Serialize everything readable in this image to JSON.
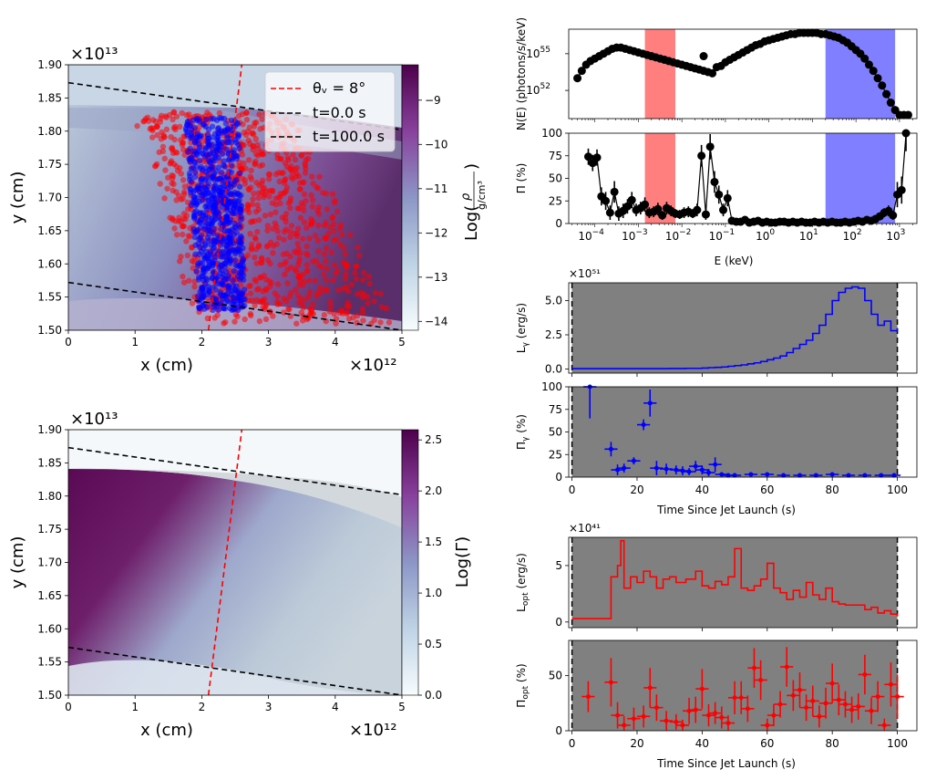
{
  "chart_data": [
    {
      "id": "density_map",
      "type": "heatmap",
      "xlabel": "x (cm)",
      "ylabel": "y (cm)",
      "xlim": [
        0,
        5
      ],
      "x_exponent": "×10¹²",
      "ylim": [
        1.5,
        1.9
      ],
      "y_exponent": "×10¹³",
      "xticks": [
        "0",
        "1",
        "2",
        "3",
        "4",
        "5"
      ],
      "yticks": [
        "1.50",
        "1.55",
        "1.60",
        "1.65",
        "1.70",
        "1.75",
        "1.80",
        "1.85",
        "1.90"
      ],
      "colorbar": {
        "label_prefix": "Log(",
        "frac_num": "ρ",
        "frac_den": "g/cm³",
        "label_suffix": ")",
        "range": [
          -14.2,
          -8.2
        ],
        "ticks": [
          "−14",
          "−13",
          "−12",
          "−11",
          "−10",
          "−9"
        ],
        "colors": [
          "#f7fcfd",
          "#bfd3e6",
          "#8c96c6",
          "#88419d",
          "#4d004b"
        ]
      },
      "legend": {
        "position": "top-right",
        "entries": [
          {
            "label": "θᵥ = 8°",
            "style": "dashed",
            "color": "#ff0000"
          },
          {
            "label": "t=0.0 s",
            "style": "dashed",
            "color": "#000000"
          },
          {
            "label": "t=100.0 s",
            "style": "dashed",
            "color": "#000000"
          }
        ]
      },
      "lines": [
        {
          "name": "line-of-sight",
          "color": "#ff0000",
          "x": [
            2.1,
            2.6
          ],
          "y": [
            1.5,
            1.9
          ]
        },
        {
          "name": "t0",
          "color": "#000000",
          "x": [
            0,
            5
          ],
          "y": [
            1.572,
            1.5
          ]
        },
        {
          "name": "t100",
          "color": "#000000",
          "x": [
            0,
            5
          ],
          "y": [
            1.873,
            1.802
          ]
        }
      ],
      "photon_clouds": [
        {
          "name": "optical",
          "color": "#ff0000",
          "x_range": [
            1.0,
            4.9
          ],
          "y_range": [
            1.51,
            1.83
          ]
        },
        {
          "name": "gamma",
          "color": "#0000ff",
          "x_range": [
            1.9,
            2.6
          ],
          "y_range": [
            1.53,
            1.82
          ]
        }
      ]
    },
    {
      "id": "lorentz_map",
      "type": "heatmap",
      "xlabel": "x (cm)",
      "ylabel": "y (cm)",
      "xlim": [
        0,
        5
      ],
      "x_exponent": "×10¹²",
      "ylim": [
        1.5,
        1.9
      ],
      "y_exponent": "×10¹³",
      "xticks": [
        "0",
        "1",
        "2",
        "3",
        "4",
        "5"
      ],
      "yticks": [
        "1.50",
        "1.55",
        "1.60",
        "1.65",
        "1.70",
        "1.75",
        "1.80",
        "1.85",
        "1.90"
      ],
      "colorbar": {
        "label": "Log(Γ)",
        "range": [
          0,
          2.6
        ],
        "ticks": [
          "0.0",
          "0.5",
          "1.0",
          "1.5",
          "2.0",
          "2.5"
        ],
        "colors": [
          "#f7fcfd",
          "#bfd3e6",
          "#8c96c6",
          "#88419d",
          "#4d004b"
        ]
      },
      "lines": [
        {
          "name": "line-of-sight",
          "color": "#ff0000",
          "x": [
            2.1,
            2.6
          ],
          "y": [
            1.5,
            1.9
          ]
        },
        {
          "name": "t0",
          "color": "#000000",
          "x": [
            0,
            5
          ],
          "y": [
            1.572,
            1.5
          ]
        },
        {
          "name": "t100",
          "color": "#000000",
          "x": [
            0,
            5
          ],
          "y": [
            1.873,
            1.802
          ]
        }
      ]
    },
    {
      "id": "spectrum",
      "type": "scatter",
      "xscale": "log",
      "yscale": "log",
      "ylabel": "N(E) (photons/s/keV)",
      "xlim_log10": [
        -4.6,
        3.4
      ],
      "ylim_log10": [
        49.7,
        57.0
      ],
      "yticks": [
        {
          "v": 52,
          "label": "10",
          "exp": "52"
        },
        {
          "v": 55,
          "label": "10",
          "exp": "55"
        }
      ],
      "bands": [
        {
          "name": "optical-band",
          "color": "#ff7f7f",
          "x_log10": [
            -2.85,
            -2.15
          ]
        },
        {
          "name": "gamma-band",
          "color": "#7f7fff",
          "x_log10": [
            1.3,
            2.9
          ]
        }
      ],
      "x_log10": [
        -4.4,
        -4.3,
        -4.2,
        -4.1,
        -4.0,
        -3.9,
        -3.8,
        -3.7,
        -3.6,
        -3.5,
        -3.4,
        -3.3,
        -3.2,
        -3.1,
        -3.0,
        -2.9,
        -2.8,
        -2.7,
        -2.6,
        -2.5,
        -2.4,
        -2.3,
        -2.2,
        -2.1,
        -2.0,
        -1.9,
        -1.8,
        -1.7,
        -1.6,
        -1.5,
        -1.4,
        -1.3,
        -1.2,
        -1.1,
        -1.0,
        -0.9,
        -0.8,
        -0.7,
        -0.6,
        -0.5,
        -0.4,
        -0.3,
        -0.2,
        -0.1,
        0.0,
        0.1,
        0.2,
        0.3,
        0.4,
        0.5,
        0.6,
        0.7,
        0.8,
        0.9,
        1.0,
        1.1,
        1.2,
        1.3,
        1.4,
        1.5,
        1.6,
        1.7,
        1.8,
        1.9,
        2.0,
        2.1,
        2.2,
        2.3,
        2.4,
        2.5,
        2.6,
        2.7,
        2.8,
        2.9,
        3.0,
        3.1,
        3.2
      ],
      "y_log10": [
        53.0,
        53.6,
        54.1,
        54.4,
        54.6,
        54.8,
        55.0,
        55.2,
        55.4,
        55.5,
        55.5,
        55.4,
        55.3,
        55.2,
        55.1,
        55.0,
        54.9,
        54.8,
        54.7,
        54.6,
        54.5,
        54.4,
        54.3,
        54.2,
        54.1,
        54.0,
        53.9,
        53.8,
        53.7,
        53.6,
        53.5,
        53.4,
        53.9,
        54.0,
        54.3,
        54.5,
        54.7,
        54.9,
        55.1,
        55.3,
        55.5,
        55.7,
        55.8,
        56.0,
        56.1,
        56.2,
        56.3,
        56.4,
        56.5,
        56.6,
        56.6,
        56.7,
        56.7,
        56.7,
        56.7,
        56.7,
        56.6,
        56.6,
        56.5,
        56.4,
        56.3,
        56.1,
        55.9,
        55.6,
        55.3,
        55.0,
        54.6,
        54.1,
        53.6,
        53.0,
        52.4,
        51.7,
        51.0,
        50.4,
        50.0,
        50.0,
        50.0
      ],
      "outlier": {
        "x_log10": -1.5,
        "y_log10": 54.8
      }
    },
    {
      "id": "spectral_polarization",
      "type": "scatter",
      "xscale": "log",
      "xlabel": "E (keV)",
      "ylabel": "Π (%)",
      "xlim_log10": [
        -4.6,
        3.4
      ],
      "ylim": [
        0,
        100
      ],
      "xticks": [
        {
          "v": -4,
          "exp": "−4"
        },
        {
          "v": -3,
          "exp": "−3"
        },
        {
          "v": -2,
          "exp": "−2"
        },
        {
          "v": -1,
          "exp": "−1"
        },
        {
          "v": 0,
          "exp": "0"
        },
        {
          "v": 1,
          "exp": "1"
        },
        {
          "v": 2,
          "exp": "2"
        },
        {
          "v": 3,
          "exp": "3"
        }
      ],
      "xtick_base": "10",
      "yticks": [
        "0",
        "25",
        "50",
        "75",
        "100"
      ],
      "bands": [
        {
          "name": "optical-band",
          "color": "#ff7f7f",
          "x_log10": [
            -2.85,
            -2.15
          ]
        },
        {
          "name": "gamma-band",
          "color": "#7f7fff",
          "x_log10": [
            1.3,
            2.9
          ]
        }
      ],
      "x_log10": [
        -4.15,
        -4.05,
        -3.95,
        -3.85,
        -3.75,
        -3.65,
        -3.55,
        -3.45,
        -3.35,
        -3.25,
        -3.15,
        -3.05,
        -2.95,
        -2.85,
        -2.75,
        -2.65,
        -2.55,
        -2.45,
        -2.35,
        -2.25,
        -2.15,
        -2.05,
        -1.95,
        -1.85,
        -1.75,
        -1.65,
        -1.55,
        -1.45,
        -1.35,
        -1.25,
        -1.15,
        -1.05,
        -0.95,
        -0.85,
        -0.75,
        -0.65,
        -0.55,
        -0.45,
        -0.35,
        -0.25,
        -0.15,
        -0.05,
        0.05,
        0.15,
        0.25,
        0.35,
        0.45,
        0.55,
        0.65,
        0.75,
        0.85,
        0.95,
        1.05,
        1.15,
        1.25,
        1.35,
        1.45,
        1.55,
        1.65,
        1.75,
        1.85,
        1.95,
        2.05,
        2.15,
        2.25,
        2.35,
        2.45,
        2.55,
        2.65,
        2.75,
        2.85,
        2.95,
        3.05,
        3.15
      ],
      "values": [
        74,
        67,
        73,
        30,
        25,
        12,
        35,
        11,
        14,
        19,
        26,
        15,
        17,
        21,
        12,
        13,
        16,
        9,
        17,
        14,
        11,
        10,
        12,
        13,
        11,
        15,
        75,
        10,
        85,
        46,
        32,
        15,
        28,
        3,
        2,
        2,
        4,
        1,
        2,
        3,
        1,
        2,
        1,
        1,
        2,
        2,
        1,
        2,
        1,
        2,
        1,
        1,
        2,
        1,
        2,
        1,
        2,
        1,
        1,
        2,
        1,
        2,
        3,
        2,
        4,
        3,
        5,
        8,
        12,
        14,
        9,
        32,
        37,
        100
      ],
      "errors": [
        9,
        9,
        9,
        10,
        10,
        8,
        12,
        8,
        8,
        8,
        9,
        7,
        7,
        8,
        6,
        6,
        7,
        5,
        7,
        6,
        5,
        5,
        6,
        6,
        5,
        7,
        12,
        6,
        14,
        12,
        10,
        7,
        9,
        2,
        2,
        2,
        2,
        1,
        2,
        2,
        1,
        1,
        1,
        1,
        1,
        1,
        1,
        1,
        1,
        1,
        1,
        1,
        1,
        1,
        1,
        1,
        1,
        1,
        1,
        1,
        1,
        1,
        2,
        2,
        2,
        2,
        3,
        4,
        5,
        6,
        5,
        14,
        15,
        20
      ]
    },
    {
      "id": "gamma_lightcurve",
      "type": "line",
      "ylabel": "L",
      "ylabel_sub": "γ",
      "ylabel_suffix": " (erg/s)",
      "scale_label": "×10⁵¹",
      "xlim": [
        -1,
        106
      ],
      "ylim": [
        -0.3,
        6.3
      ],
      "yticks": [
        "0.0",
        "2.5",
        "5.0"
      ],
      "ytick_values": [
        0,
        2.5,
        5.0
      ],
      "color": "#0000ff",
      "t": [
        0,
        5,
        10,
        15,
        20,
        25,
        30,
        35,
        40,
        42,
        44,
        46,
        48,
        50,
        52,
        54,
        56,
        58,
        60,
        62,
        64,
        66,
        68,
        70,
        72,
        74,
        76,
        78,
        80,
        82,
        84,
        86,
        88,
        90,
        92,
        94,
        96,
        98,
        100
      ],
      "values": [
        0.03,
        0.03,
        0.03,
        0.03,
        0.03,
        0.03,
        0.04,
        0.05,
        0.07,
        0.1,
        0.12,
        0.15,
        0.2,
        0.25,
        0.3,
        0.38,
        0.45,
        0.55,
        0.68,
        0.8,
        0.95,
        1.2,
        1.5,
        1.8,
        2.1,
        2.6,
        3.2,
        4.0,
        5.0,
        5.6,
        5.9,
        6.0,
        5.9,
        5.0,
        4.0,
        3.2,
        3.5,
        2.8,
        3.0
      ],
      "jet_launch": 0,
      "t_end": 100
    },
    {
      "id": "gamma_polarization",
      "type": "scatter",
      "ylabel": "Π",
      "ylabel_sub": "γ",
      "ylabel_suffix": " (%)",
      "xlabel": "Time Since Jet Launch (s)",
      "xlim": [
        -1,
        106
      ],
      "ylim": [
        0,
        100
      ],
      "xticks": [
        "0",
        "20",
        "40",
        "60",
        "80",
        "100"
      ],
      "yticks": [
        "0",
        "25",
        "50",
        "75",
        "100"
      ],
      "color": "#0000ff",
      "t": [
        5.5,
        12,
        14,
        16,
        19,
        22,
        24,
        26,
        29,
        32,
        34,
        36,
        38,
        40,
        42,
        44,
        46,
        48,
        50,
        55,
        60,
        65,
        70,
        75,
        80,
        85,
        90,
        95,
        99
      ],
      "values": [
        100,
        31,
        8,
        10,
        18,
        58,
        82,
        10,
        9,
        8,
        7,
        6,
        12,
        8,
        5,
        14,
        3,
        2,
        2,
        3,
        3,
        2,
        2,
        2,
        3,
        2,
        2,
        2,
        2
      ],
      "errors": [
        35,
        8,
        6,
        5,
        4,
        6,
        15,
        8,
        6,
        5,
        5,
        4,
        6,
        5,
        4,
        8,
        2,
        2,
        1,
        1,
        1,
        1,
        1,
        1,
        1,
        1,
        1,
        1,
        1
      ],
      "jet_launch": 0,
      "t_end": 100
    },
    {
      "id": "optical_lightcurve",
      "type": "line",
      "ylabel": "L",
      "ylabel_sub": "opt",
      "ylabel_suffix": " (erg/s)",
      "scale_label": "×10⁴¹",
      "xlim": [
        -1,
        106
      ],
      "ylim": [
        -0.5,
        7.5
      ],
      "yticks": [
        "0",
        "5"
      ],
      "ytick_values": [
        0,
        5
      ],
      "color": "#ff0000",
      "t": [
        0,
        5,
        10,
        12,
        14,
        15,
        16,
        18,
        20,
        22,
        24,
        26,
        28,
        30,
        32,
        35,
        38,
        40,
        42,
        44,
        46,
        48,
        50,
        52,
        54,
        56,
        58,
        60,
        62,
        64,
        66,
        68,
        70,
        72,
        74,
        76,
        78,
        80,
        82,
        84,
        86,
        88,
        90,
        92,
        94,
        96,
        98,
        100
      ],
      "values": [
        0.3,
        0.3,
        0.3,
        4.0,
        5.0,
        7.2,
        3.0,
        4.0,
        3.5,
        4.5,
        4.0,
        3.0,
        3.8,
        4.0,
        3.5,
        3.8,
        4.5,
        3.2,
        3.0,
        3.6,
        3.3,
        4.0,
        6.5,
        3.0,
        2.8,
        3.2,
        3.8,
        5.2,
        3.0,
        2.6,
        2.0,
        2.8,
        2.2,
        3.5,
        2.4,
        2.0,
        3.0,
        1.8,
        1.6,
        1.5,
        1.5,
        1.5,
        1.1,
        1.3,
        0.8,
        1.0,
        0.7,
        0.5
      ],
      "jet_launch": 0,
      "t_end": 100
    },
    {
      "id": "optical_polarization",
      "type": "scatter",
      "ylabel": "Π",
      "ylabel_sub": "opt",
      "ylabel_suffix": " (%)",
      "xlabel": "Time Since Jet Launch (s)",
      "xlim": [
        -1,
        106
      ],
      "ylim": [
        0,
        82
      ],
      "xticks": [
        "0",
        "20",
        "40",
        "60",
        "80",
        "100"
      ],
      "yticks": [
        "0",
        "50"
      ],
      "ytick_values": [
        0,
        50
      ],
      "color": "#ff0000",
      "t": [
        5,
        12,
        14,
        16,
        19,
        22,
        24,
        26,
        29,
        32,
        34,
        36,
        38,
        40,
        42,
        44,
        46,
        48,
        50,
        52,
        54,
        56,
        58,
        60,
        62,
        64,
        66,
        68,
        70,
        72,
        74,
        76,
        78,
        80,
        82,
        84,
        86,
        88,
        90,
        92,
        94,
        96,
        98,
        100
      ],
      "values": [
        31,
        44,
        14,
        5,
        11,
        13,
        39,
        21,
        9,
        8,
        5,
        18,
        19,
        38,
        14,
        16,
        12,
        7,
        30,
        30,
        20,
        57,
        46,
        5,
        14,
        24,
        58,
        32,
        37,
        21,
        27,
        13,
        25,
        43,
        28,
        24,
        19,
        22,
        51,
        18,
        31,
        5,
        42,
        31
      ],
      "errors": [
        14,
        22,
        12,
        8,
        10,
        10,
        18,
        12,
        9,
        7,
        5,
        12,
        12,
        18,
        10,
        10,
        10,
        7,
        15,
        15,
        12,
        18,
        18,
        6,
        10,
        12,
        18,
        14,
        16,
        12,
        14,
        10,
        14,
        18,
        14,
        12,
        12,
        12,
        18,
        12,
        14,
        6,
        20,
        20
      ],
      "jet_launch": 0,
      "t_end": 100
    }
  ]
}
